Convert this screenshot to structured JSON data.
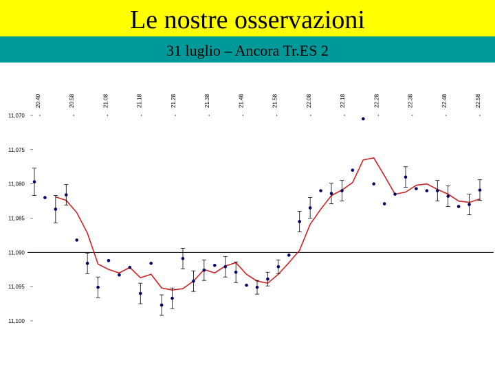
{
  "header": {
    "title": "Le nostre osservazioni",
    "subtitle": "31 luglio – Ancora Tr.ES 2"
  },
  "chart_data": {
    "type": "scatter",
    "xtick_labels": [
      "20.40",
      "20.58",
      "21.08",
      "21.18",
      "21.28",
      "21.38",
      "21.48",
      "21.58",
      "22.08",
      "22.18",
      "22.28",
      "22.38",
      "22.48",
      "22.58"
    ],
    "ylim": [
      11.07,
      11.1
    ],
    "y_inverted": true,
    "yticks": [
      {
        "value": 11.07,
        "label": "11,070"
      },
      {
        "value": 11.075,
        "label": "11,075"
      },
      {
        "value": 11.08,
        "label": "11,080"
      },
      {
        "value": 11.085,
        "label": "11,085"
      },
      {
        "value": 11.09,
        "label": "11,090"
      },
      {
        "value": 11.095,
        "label": "11,095"
      },
      {
        "value": 11.1,
        "label": "11,100"
      }
    ],
    "reference_value": 11.09,
    "series": [
      {
        "kind": "points",
        "color": "#000066",
        "values": [
          11.0797,
          11.082,
          11.0837,
          11.0816,
          11.0882,
          11.0916,
          11.0951,
          11.0912,
          11.0933,
          11.0922,
          11.096,
          11.0916,
          11.0977,
          11.0967,
          11.0909,
          11.0942,
          11.0926,
          11.0919,
          11.0921,
          11.0929,
          11.0948,
          11.0951,
          11.0939,
          11.0921,
          11.0904,
          11.0855,
          11.0835,
          11.081,
          11.0814,
          11.081,
          11.078,
          11.0705,
          11.08,
          11.0829,
          11.0815,
          11.079,
          11.0807,
          11.081,
          11.081,
          11.0818,
          11.0833,
          11.083,
          11.0809
        ],
        "errors": [
          0.002,
          null,
          0.002,
          0.0015,
          null,
          0.0015,
          0.0015,
          null,
          null,
          null,
          0.0015,
          null,
          0.0015,
          0.0015,
          0.0015,
          0.0015,
          0.0015,
          null,
          0.0015,
          0.0015,
          null,
          0.001,
          0.001,
          0.001,
          null,
          0.0015,
          0.0015,
          null,
          0.0015,
          0.0015,
          null,
          null,
          null,
          null,
          null,
          0.0015,
          null,
          null,
          0.0015,
          0.0015,
          null,
          0.0015,
          0.0015
        ]
      },
      {
        "kind": "line",
        "color": "#cc2222",
        "values": [
          null,
          null,
          11.0819,
          11.0824,
          11.0842,
          11.0872,
          11.0917,
          11.0925,
          11.093,
          11.0922,
          11.0937,
          11.0932,
          11.0952,
          11.0955,
          11.0953,
          11.0942,
          11.0925,
          11.093,
          11.092,
          11.0915,
          11.0932,
          11.0942,
          11.0945,
          11.0932,
          11.0915,
          11.0897,
          11.0859,
          11.0837,
          11.0817,
          11.0809,
          11.0798,
          11.0765,
          11.0762,
          11.0788,
          11.0815,
          11.0812,
          11.0802,
          11.08,
          11.0808,
          11.0815,
          11.0825,
          11.0827,
          11.0822
        ]
      }
    ]
  }
}
